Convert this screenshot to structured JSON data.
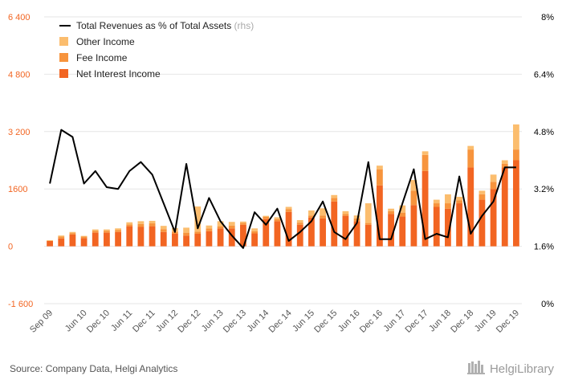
{
  "chart_data": {
    "type": "bar",
    "categories": [
      "Sep 09",
      "Dec 09",
      "Mar 10",
      "Jun 10",
      "Sep 10",
      "Dec 10",
      "Mar 11",
      "Jun 11",
      "Sep 11",
      "Dec 11",
      "Mar 12",
      "Jun 12",
      "Sep 12",
      "Dec 12",
      "Mar 13",
      "Jun 13",
      "Sep 13",
      "Dec 13",
      "Mar 14",
      "Jun 14",
      "Sep 14",
      "Dec 14",
      "Mar 15",
      "Jun 15",
      "Sep 15",
      "Dec 15",
      "Mar 16",
      "Jun 16",
      "Sep 16",
      "Dec 16",
      "Mar 17",
      "Jun 17",
      "Sep 17",
      "Dec 17",
      "Mar 18",
      "Jun 18",
      "Sep 18",
      "Dec 18",
      "Mar 19",
      "Jun 19",
      "Sep 19",
      "Dec 19"
    ],
    "x_tick_labels": [
      "Sep 09",
      "Jun 10",
      "Dec 10",
      "Jun 11",
      "Dec 11",
      "Jun 12",
      "Dec 12",
      "Jun 13",
      "Dec 13",
      "Jun 14",
      "Dec 14",
      "Jun 15",
      "Dec 15",
      "Jun 16",
      "Dec 16",
      "Jun 17",
      "Dec 17",
      "Jun 18",
      "Dec 18",
      "Jun 19",
      "Dec 19"
    ],
    "series": [
      {
        "name": "Net Interest Income",
        "color": "#f26522",
        "values": [
          150,
          220,
          330,
          230,
          380,
          380,
          400,
          560,
          540,
          560,
          400,
          350,
          300,
          350,
          420,
          500,
          500,
          600,
          360,
          760,
          700,
          960,
          600,
          800,
          780,
          1250,
          850,
          700,
          600,
          1700,
          900,
          830,
          1150,
          2100,
          1100,
          1050,
          1200,
          2200,
          1300,
          1600,
          2200,
          2400
        ]
      },
      {
        "name": "Fee Income",
        "color": "#f7943d",
        "values": [
          0,
          50,
          40,
          40,
          50,
          50,
          50,
          50,
          80,
          80,
          80,
          60,
          80,
          60,
          80,
          60,
          80,
          50,
          60,
          60,
          60,
          80,
          60,
          60,
          80,
          100,
          50,
          80,
          50,
          450,
          80,
          110,
          400,
          450,
          100,
          150,
          80,
          500,
          150,
          200,
          100,
          300
        ]
      },
      {
        "name": "Other Income",
        "color": "#fbbd6e",
        "values": [
          20,
          30,
          30,
          20,
          40,
          40,
          50,
          60,
          80,
          70,
          90,
          100,
          140,
          700,
          80,
          140,
          100,
          40,
          80,
          30,
          50,
          60,
          70,
          140,
          200,
          80,
          80,
          80,
          550,
          100,
          70,
          200,
          300,
          100,
          100,
          250,
          100,
          100,
          100,
          200,
          100,
          700
        ]
      }
    ],
    "line_series": {
      "name": "Total Revenues as % of Total Assets",
      "suffix": "(rhs)",
      "color": "#000000",
      "values": [
        3.35,
        4.85,
        4.65,
        3.35,
        3.7,
        3.25,
        3.2,
        3.7,
        3.95,
        3.6,
        2.8,
        2.0,
        3.9,
        2.1,
        2.95,
        2.3,
        1.9,
        1.55,
        2.55,
        2.2,
        2.65,
        1.75,
        2.0,
        2.3,
        2.85,
        2.0,
        1.8,
        2.25,
        3.95,
        1.8,
        1.8,
        2.8,
        3.75,
        1.8,
        1.95,
        1.85,
        3.55,
        1.95,
        2.45,
        2.85,
        3.8,
        3.8
      ]
    },
    "left_axis": {
      "ticks": [
        "6 400",
        "4 800",
        "3 200",
        "1600",
        "0",
        "-1 600"
      ],
      "tick_values": [
        6400,
        4800,
        3200,
        1600,
        0,
        -1600
      ],
      "ylim": [
        -1600,
        6400
      ],
      "color": "#f26522"
    },
    "right_axis": {
      "ticks": [
        "8%",
        "6.4%",
        "4.8%",
        "3.2%",
        "1.6%",
        "0%"
      ],
      "tick_values": [
        8,
        6.4,
        4.8,
        3.2,
        1.6,
        0
      ],
      "ylim": [
        0,
        8
      ],
      "color": "#000000"
    },
    "grid": true,
    "legend_placement": "top-left",
    "legend": [
      {
        "label": "Total Revenues as % of Total Assets",
        "suffix": "(rhs)",
        "kind": "line",
        "color": "#000000"
      },
      {
        "label": "Other Income",
        "kind": "square",
        "color": "#fbbd6e"
      },
      {
        "label": "Fee Income",
        "kind": "square",
        "color": "#f7943d"
      },
      {
        "label": "Net Interest Income",
        "kind": "square",
        "color": "#f26522"
      }
    ]
  },
  "footer": {
    "source": "Source: Company Data, Helgi Analytics",
    "logo_text": "HelgiLibrary"
  }
}
